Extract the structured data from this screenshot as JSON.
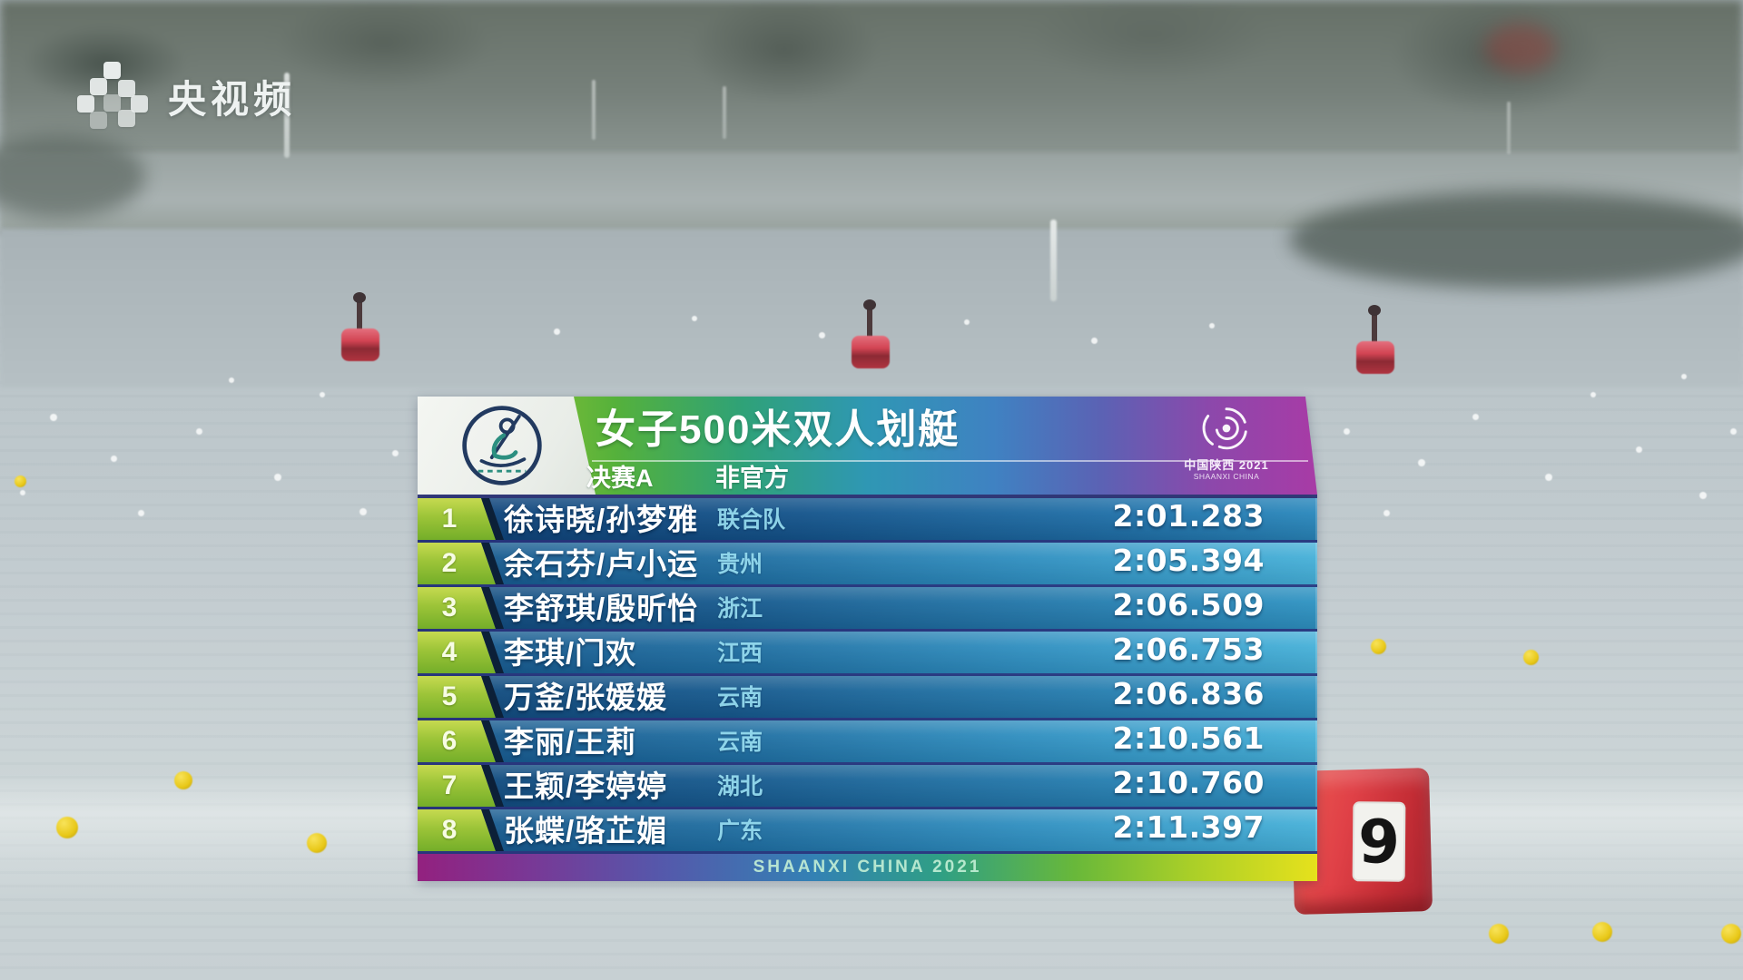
{
  "watermark": {
    "logo_text": "央视频"
  },
  "scoreboard": {
    "title": "女子500米双人划艇",
    "round": "决赛A",
    "status_label": "非官方",
    "emblem": {
      "cn": "中国陕西 2021",
      "en": "SHAANXI CHINA"
    },
    "results": [
      {
        "rank": "1",
        "names": "徐诗晓/孙梦雅",
        "team": "联合队",
        "time": "2:01.283"
      },
      {
        "rank": "2",
        "names": "余石芬/卢小运",
        "team": "贵州",
        "time": "2:05.394"
      },
      {
        "rank": "3",
        "names": "李舒琪/殷昕怡",
        "team": "浙江",
        "time": "2:06.509"
      },
      {
        "rank": "4",
        "names": "李琪/门欢",
        "team": "江西",
        "time": "2:06.753"
      },
      {
        "rank": "5",
        "names": "万釜/张媛媛",
        "team": "云南",
        "time": "2:06.836"
      },
      {
        "rank": "6",
        "names": "李丽/王莉",
        "team": "云南",
        "time": "2:10.561"
      },
      {
        "rank": "7",
        "names": "王颖/李婷婷",
        "team": "湖北",
        "time": "2:10.760"
      },
      {
        "rank": "8",
        "names": "张蝶/骆芷媚",
        "team": "广东",
        "time": "2:11.397"
      }
    ],
    "footer_text": "SHAANXI CHINA 2021"
  },
  "scene": {
    "buoy_number": "9"
  },
  "colors": {
    "rank_green": "#9cc438",
    "row_blue_dark": "#11497c",
    "row_blue_light": "#2f8fc0",
    "header_green": "#55b13b",
    "header_purple": "#a83ba6",
    "team_text": "#97ddf0",
    "footer_yellow": "#e6e11c",
    "buoy_red": "#d93a42"
  }
}
